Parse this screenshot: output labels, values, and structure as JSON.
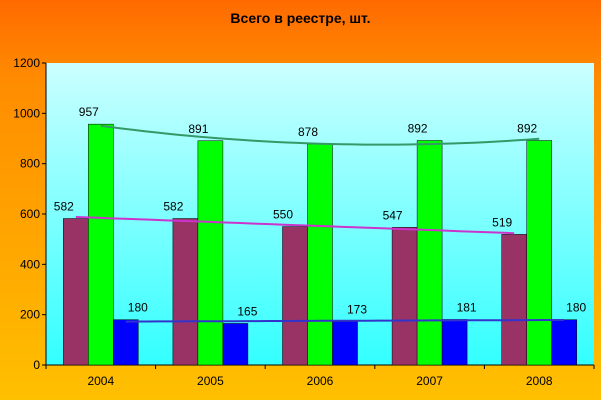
{
  "chart_data": {
    "type": "bar",
    "title": "Всего в реестре, шт.",
    "categories": [
      "2004",
      "2005",
      "2006",
      "2007",
      "2008"
    ],
    "series": [
      {
        "values": [
          582,
          582,
          550,
          547,
          519
        ],
        "color": "#993366",
        "trend_color": "#cc33cc"
      },
      {
        "values": [
          957,
          891,
          878,
          892,
          892
        ],
        "color": "#00ff00",
        "trend_color": "#339966"
      },
      {
        "values": [
          180,
          165,
          173,
          181,
          180
        ],
        "color": "#0000ff",
        "trend_color": "#3333cc"
      }
    ],
    "ylim": [
      0,
      1200
    ],
    "yticks": [
      0,
      200,
      400,
      600,
      800,
      1000,
      1200
    ],
    "trendlines": true,
    "legend": "none",
    "grid": false,
    "plot_background": [
      "#ccffff",
      "#33ffff"
    ]
  }
}
